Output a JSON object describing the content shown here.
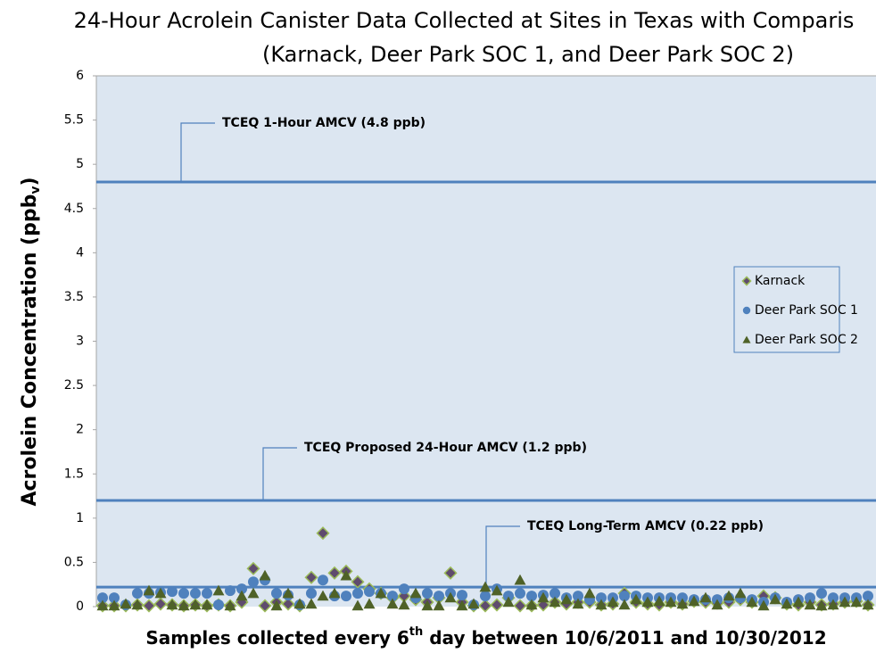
{
  "chart_data": {
    "type": "scatter",
    "title_lines": [
      "24-Hour Acrolein Canister Data Collected at Sites in Texas with Comparis",
      "(Karnack, Deer Park SOC 1, and Deer Park SOC 2)"
    ],
    "y_label": {
      "text": "Acrolein Concentration (ppb",
      "sub": "v",
      "close": ")"
    },
    "x_label": {
      "text": "Samples collected every 6",
      "sup": "th",
      "rest": " day between 10/6/2011 and 10/30/2012"
    },
    "ylim": [
      0,
      6
    ],
    "yticks": [
      0,
      0.5,
      1,
      1.5,
      2,
      2.5,
      3,
      3.5,
      4,
      4.5,
      5,
      5.5,
      6
    ],
    "plot_color": "#dce6f1",
    "reference_lines": [
      {
        "value": 4.8,
        "label": "TCEQ 1-Hour AMCV (4.8 ppb)",
        "color": "#4f81bd"
      },
      {
        "value": 1.2,
        "label": "TCEQ Proposed 24-Hour AMCV (1.2 ppb)",
        "color": "#4f81bd"
      },
      {
        "value": 0.22,
        "label": "TCEQ Long-Term AMCV (0.22 ppb)",
        "color": "#4f81bd"
      }
    ],
    "series": [
      {
        "name": "Karnack",
        "marker": "diamond",
        "color": "#5f4b6e",
        "values": [
          0.01,
          0.01,
          0.01,
          0.02,
          0.01,
          0.03,
          0.02,
          0.01,
          0.02,
          0.01,
          0.02,
          0.01,
          0.05,
          0.43,
          0.01,
          0.05,
          0.03,
          0.01,
          0.33,
          0.83,
          0.38,
          0.4,
          0.28,
          0.2,
          0.15,
          0.1,
          0.12,
          0.08,
          0.05,
          0.1,
          0.38,
          0.05,
          0.01,
          0.01,
          0.02,
          0.1,
          0.01,
          0.01,
          0.02,
          0.05,
          0.03,
          0.05,
          0.05,
          0.02,
          0.03,
          0.15,
          0.05,
          0.03,
          0.02,
          0.05,
          0.03,
          0.06,
          0.05,
          0.04,
          0.05,
          0.08,
          0.05,
          0.12,
          0.1,
          0.03,
          0.02,
          0.05,
          0.02,
          0.03,
          0.05,
          0.06,
          0.02
        ]
      },
      {
        "name": "Deer Park SOC 1",
        "marker": "circle",
        "color": "#4f81bd",
        "values": [
          0.1,
          0.1,
          0.02,
          0.15,
          0.15,
          0.16,
          0.17,
          0.15,
          0.15,
          0.15,
          0.02,
          0.18,
          0.2,
          0.28,
          0.3,
          0.15,
          0.13,
          0.02,
          0.15,
          0.3,
          0.12,
          0.12,
          0.15,
          0.17,
          0.15,
          0.12,
          0.2,
          0.1,
          0.15,
          0.12,
          0.15,
          0.13,
          0.02,
          0.12,
          0.2,
          0.12,
          0.15,
          0.12,
          0.13,
          0.15,
          0.1,
          0.12,
          0.08,
          0.1,
          0.1,
          0.12,
          0.12,
          0.1,
          0.1,
          0.1,
          0.1,
          0.08,
          0.08,
          0.08,
          0.1,
          0.1,
          0.08,
          0.05,
          0.1,
          0.05,
          0.08,
          0.1,
          0.15,
          0.1,
          0.1,
          0.1,
          0.12
        ]
      },
      {
        "name": "Deer Park SOC 2",
        "marker": "triangle",
        "color": "#4f6228",
        "values": [
          0.01,
          0.01,
          0.03,
          0.02,
          0.18,
          0.15,
          0.02,
          0.01,
          0.02,
          0.02,
          0.18,
          0.01,
          0.12,
          0.15,
          0.35,
          0.01,
          0.15,
          0.03,
          0.03,
          0.12,
          0.15,
          0.35,
          0.01,
          0.03,
          0.15,
          0.03,
          0.02,
          0.15,
          0.01,
          0.01,
          0.1,
          0.01,
          0.03,
          0.22,
          0.18,
          0.05,
          0.3,
          0.02,
          0.1,
          0.05,
          0.08,
          0.03,
          0.15,
          0.02,
          0.05,
          0.02,
          0.08,
          0.05,
          0.06,
          0.05,
          0.03,
          0.06,
          0.1,
          0.02,
          0.12,
          0.15,
          0.05,
          0.01,
          0.08,
          0.03,
          0.05,
          0.02,
          0.01,
          0.02,
          0.05,
          0.05,
          0.02
        ]
      }
    ]
  }
}
